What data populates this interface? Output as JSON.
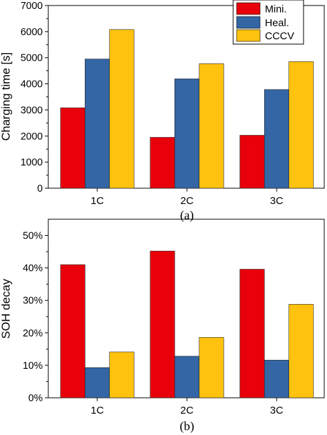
{
  "chart_data": [
    {
      "type": "bar",
      "categories": [
        "1C",
        "2C",
        "3C"
      ],
      "series": [
        {
          "name": "Mini.",
          "values": [
            3080,
            1950,
            2030
          ]
        },
        {
          "name": "Heal.",
          "values": [
            4950,
            4190,
            3780
          ]
        },
        {
          "name": "CCCV",
          "values": [
            6080,
            4770,
            4850
          ]
        }
      ],
      "ylabel": "Charging time [s]",
      "xlabel": "",
      "ylim": [
        0,
        7000
      ],
      "yticks": [
        "0",
        "1000",
        "2000",
        "3000",
        "4000",
        "5000",
        "6000",
        "7000"
      ],
      "legend": "top-right",
      "caption": "(a)",
      "grid": false
    },
    {
      "type": "bar",
      "categories": [
        "1C",
        "2C",
        "3C"
      ],
      "series": [
        {
          "name": "Mini.",
          "values": [
            41.0,
            45.2,
            39.6
          ]
        },
        {
          "name": "Heal.",
          "values": [
            9.3,
            12.8,
            11.6
          ]
        },
        {
          "name": "CCCV",
          "values": [
            14.1,
            18.6,
            28.8
          ]
        }
      ],
      "ylabel": "SOH decay",
      "xlabel": "",
      "ylim": [
        0,
        55
      ],
      "yticks": [
        "0%",
        "10%",
        "20%",
        "30%",
        "40%",
        "50%"
      ],
      "caption": "(b)",
      "grid": false
    }
  ],
  "colors": {
    "Mini.": "#e8000b",
    "Heal.": "#3466a5",
    "CCCV": "#ffc20e"
  }
}
